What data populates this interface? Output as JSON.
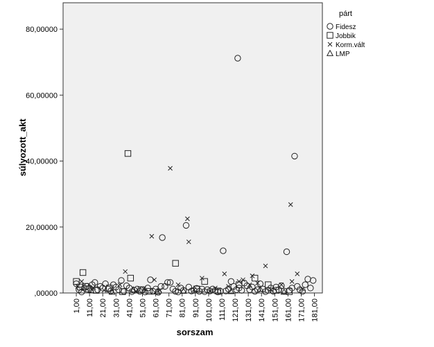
{
  "chart_data": {
    "type": "scatter",
    "title": "",
    "xlabel": "sorszam",
    "ylabel": "súlyozott_akt",
    "xlim": [
      -9,
      187
    ],
    "ylim": [
      0,
      88
    ],
    "y_ticks": [
      0,
      20,
      40,
      60,
      80
    ],
    "y_tick_labels": [
      ",00000",
      "20,00000",
      "40,00000",
      "60,00000",
      "80,00000"
    ],
    "x_ticks": [
      1,
      11,
      21,
      31,
      41,
      51,
      61,
      71,
      81,
      91,
      101,
      111,
      121,
      131,
      141,
      151,
      161,
      171,
      181
    ],
    "x_tick_labels": [
      "1,00",
      "11,00",
      "21,00",
      "31,00",
      "41,00",
      "51,00",
      "61,00",
      "71,00",
      "81,00",
      "91,00",
      "101,00",
      "111,00",
      "121,00",
      "131,00",
      "141,00",
      "151,00",
      "161,00",
      "171,00",
      "181,00"
    ],
    "grid": false,
    "plot_background": "#f0f0f0",
    "legend": {
      "title": "párt",
      "placement": "right",
      "entries": [
        {
          "name": "Fidesz",
          "marker": "circle"
        },
        {
          "name": "Jobbik",
          "marker": "square"
        },
        {
          "name": "Korm.vált",
          "marker": "x"
        },
        {
          "name": "LMP",
          "marker": "triangle"
        }
      ]
    },
    "series": [
      {
        "name": "Fidesz",
        "marker": "circle",
        "points": [
          [
            1,
            2.8
          ],
          [
            3,
            1.0
          ],
          [
            5,
            0.3
          ],
          [
            7,
            1.5
          ],
          [
            9,
            2.0
          ],
          [
            11,
            1.5
          ],
          [
            13,
            2.5
          ],
          [
            15,
            3.2
          ],
          [
            17,
            1.0
          ],
          [
            19,
            2.0
          ],
          [
            21,
            1.5
          ],
          [
            23,
            2.8
          ],
          [
            25,
            1.2
          ],
          [
            27,
            0.6
          ],
          [
            29,
            2.5
          ],
          [
            31,
            1.8
          ],
          [
            33,
            1.0
          ],
          [
            35,
            3.8
          ],
          [
            37,
            0.5
          ],
          [
            39,
            2.2
          ],
          [
            41,
            1.5
          ],
          [
            43,
            0.4
          ],
          [
            45,
            0.8
          ],
          [
            47,
            1.2
          ],
          [
            49,
            0.5
          ],
          [
            51,
            1.0
          ],
          [
            53,
            0.3
          ],
          [
            55,
            1.5
          ],
          [
            57,
            4.0
          ],
          [
            59,
            0.5
          ],
          [
            61,
            1.2
          ],
          [
            63,
            0.2
          ],
          [
            65,
            2.0
          ],
          [
            66,
            16.8
          ],
          [
            68,
            2.0
          ],
          [
            70,
            3.2
          ],
          [
            72,
            3.2
          ],
          [
            74,
            1.2
          ],
          [
            76,
            0.5
          ],
          [
            78,
            0.3
          ],
          [
            80,
            1.5
          ],
          [
            82,
            0.8
          ],
          [
            84,
            20.5
          ],
          [
            86,
            1.8
          ],
          [
            88,
            0.6
          ],
          [
            90,
            0.8
          ],
          [
            92,
            1.4
          ],
          [
            94,
            0.5
          ],
          [
            96,
            1.2
          ],
          [
            98,
            0.4
          ],
          [
            100,
            1.0
          ],
          [
            102,
            0.6
          ],
          [
            104,
            1.2
          ],
          [
            106,
            0.8
          ],
          [
            108,
            0.3
          ],
          [
            110,
            0.5
          ],
          [
            112,
            12.8
          ],
          [
            114,
            0.6
          ],
          [
            116,
            1.2
          ],
          [
            118,
            3.5
          ],
          [
            120,
            2.0
          ],
          [
            122,
            1.0
          ],
          [
            123,
            71.2
          ],
          [
            124,
            1.5
          ],
          [
            126,
            0.8
          ],
          [
            128,
            3.0
          ],
          [
            130,
            2.2
          ],
          [
            132,
            1.0
          ],
          [
            134,
            1.8
          ],
          [
            136,
            0.5
          ],
          [
            138,
            1.0
          ],
          [
            140,
            2.8
          ],
          [
            142,
            1.2
          ],
          [
            144,
            0.4
          ],
          [
            146,
            0.8
          ],
          [
            148,
            1.5
          ],
          [
            150,
            0.5
          ],
          [
            152,
            1.8
          ],
          [
            154,
            1.0
          ],
          [
            156,
            2.2
          ],
          [
            158,
            0.6
          ],
          [
            160,
            12.5
          ],
          [
            162,
            0.8
          ],
          [
            164,
            1.5
          ],
          [
            166,
            41.5
          ],
          [
            168,
            2.0
          ],
          [
            170,
            1.0
          ],
          [
            172,
            0.5
          ],
          [
            174,
            2.5
          ],
          [
            176,
            4.2
          ],
          [
            178,
            1.5
          ],
          [
            180,
            3.8
          ]
        ]
      },
      {
        "name": "Jobbik",
        "marker": "square",
        "points": [
          [
            1,
            3.5
          ],
          [
            4,
            1.8
          ],
          [
            6,
            6.2
          ],
          [
            8,
            2.0
          ],
          [
            10,
            1.2
          ],
          [
            16,
            0.8
          ],
          [
            26,
            1.5
          ],
          [
            36,
            0.4
          ],
          [
            40,
            42.3
          ],
          [
            42,
            4.5
          ],
          [
            50,
            1.0
          ],
          [
            56,
            0.5
          ],
          [
            76,
            9.0
          ],
          [
            92,
            1.2
          ],
          [
            98,
            3.5
          ],
          [
            108,
            0.6
          ],
          [
            124,
            2.5
          ],
          [
            136,
            4.5
          ],
          [
            146,
            2.5
          ],
          [
            152,
            0.8
          ],
          [
            162,
            0.4
          ]
        ]
      },
      {
        "name": "Korm.vált",
        "marker": "x",
        "points": [
          [
            2,
            2.0
          ],
          [
            5,
            3.5
          ],
          [
            14,
            1.5
          ],
          [
            22,
            0.8
          ],
          [
            34,
            2.5
          ],
          [
            38,
            6.5
          ],
          [
            46,
            0.5
          ],
          [
            52,
            1.2
          ],
          [
            58,
            17.2
          ],
          [
            60,
            4.0
          ],
          [
            64,
            0.8
          ],
          [
            72,
            37.8
          ],
          [
            78,
            2.5
          ],
          [
            85,
            22.5
          ],
          [
            86,
            15.5
          ],
          [
            90,
            1.0
          ],
          [
            96,
            4.5
          ],
          [
            102,
            0.5
          ],
          [
            106,
            1.5
          ],
          [
            113,
            5.8
          ],
          [
            116,
            2.0
          ],
          [
            124,
            3.5
          ],
          [
            127,
            4.0
          ],
          [
            132,
            2.5
          ],
          [
            134,
            5.2
          ],
          [
            138,
            3.0
          ],
          [
            144,
            8.2
          ],
          [
            148,
            1.0
          ],
          [
            156,
            2.5
          ],
          [
            163,
            26.8
          ],
          [
            164,
            3.5
          ],
          [
            168,
            5.8
          ],
          [
            172,
            1.2
          ]
        ]
      },
      {
        "name": "LMP",
        "marker": "triangle",
        "points": [
          [
            12,
            0.8
          ],
          [
            28,
            0.3
          ],
          [
            44,
            1.0
          ],
          [
            62,
            0.4
          ],
          [
            82,
            0.6
          ],
          [
            118,
            0.5
          ],
          [
            140,
            1.2
          ],
          [
            158,
            0.3
          ]
        ]
      }
    ]
  }
}
